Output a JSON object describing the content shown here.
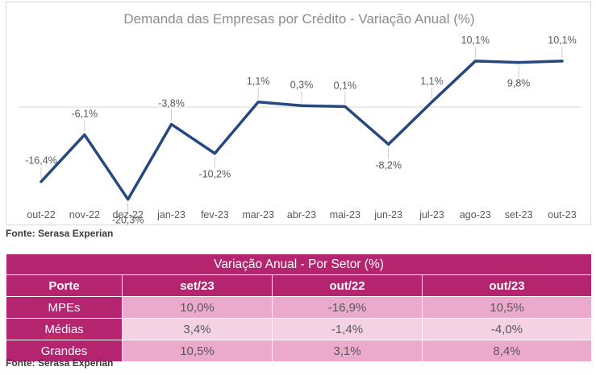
{
  "chart_data": {
    "type": "line",
    "title": "Demanda das Empresas por Crédito - Variação Anual (%)",
    "categories": [
      "out-22",
      "nov-22",
      "dez-22",
      "jan-23",
      "fev-23",
      "mar-23",
      "abr-23",
      "mai-23",
      "jun-23",
      "jul-23",
      "ago-23",
      "set-23",
      "out-23"
    ],
    "series": [
      {
        "values": [
          -16.4,
          -6.1,
          -20.3,
          -3.8,
          -10.2,
          1.1,
          0.3,
          0.1,
          -8.2,
          1.1,
          10.1,
          9.8,
          10.1
        ],
        "labels": [
          "-16,4%",
          "-6,1%",
          "-20,3%",
          "-3,8%",
          "-10,2%",
          "1,1%",
          "0,3%",
          "0,1%",
          "-8,2%",
          "1,1%",
          "10,1%",
          "9,8%",
          "10,1%"
        ],
        "color": "#25497f"
      }
    ],
    "ylim": [
      -25,
      20
    ],
    "grid": false,
    "legend": "none"
  },
  "source_1": "Fonte: Serasa Experian",
  "table": {
    "title": "Variação Anual - Por Setor (%)",
    "headers": [
      "Porte",
      "set/23",
      "out/22",
      "out/23"
    ],
    "rows": [
      {
        "label": "MPEs",
        "values": [
          "10,0%",
          "-16,9%",
          "10,5%"
        ]
      },
      {
        "label": "Médias",
        "values": [
          "3,4%",
          "-1,4%",
          "-4,0%"
        ]
      },
      {
        "label": "Grandes",
        "values": [
          "10,5%",
          "3,1%",
          "8,4%"
        ]
      }
    ]
  },
  "source_2": "Fonte: Serasa Experian",
  "colors": {
    "line": "#25497f",
    "table_accent": "#b5246f",
    "row_dark": "#eba9cb",
    "row_light": "#f4d2e4"
  }
}
